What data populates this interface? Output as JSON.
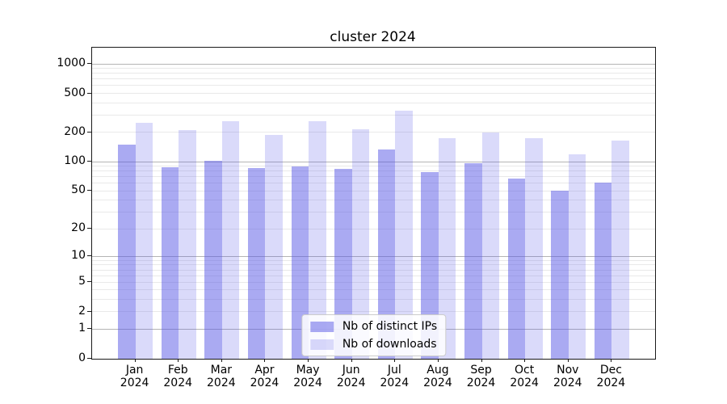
{
  "chart_data": {
    "type": "bar",
    "title": "cluster 2024",
    "categories": [
      "Jan",
      "Feb",
      "Mar",
      "Apr",
      "May",
      "Jun",
      "Jul",
      "Aug",
      "Sep",
      "Oct",
      "Nov",
      "Dec"
    ],
    "xlabel_year": "2024",
    "series": [
      {
        "name": "Nb of distinct IPs",
        "color": "rgba(85,85,230,0.5)",
        "values": [
          150,
          88,
          103,
          86,
          90,
          84,
          134,
          78,
          96,
          67,
          50,
          61
        ]
      },
      {
        "name": "Nb of downloads",
        "color": "rgba(85,85,230,0.22)",
        "values": [
          250,
          210,
          260,
          190,
          260,
          215,
          335,
          175,
          200,
          173,
          120,
          165
        ]
      }
    ],
    "yscale": "log1p",
    "ylim": [
      0,
      1460
    ],
    "yticks": [
      0,
      1,
      2,
      5,
      10,
      20,
      50,
      100,
      200,
      500,
      1000
    ],
    "yticks_major_grid": [
      1,
      10,
      100,
      1000
    ],
    "yticks_minor_grid": [
      2,
      3,
      4,
      5,
      6,
      7,
      8,
      9,
      20,
      30,
      40,
      50,
      60,
      70,
      80,
      90,
      200,
      300,
      400,
      500,
      600,
      700,
      800,
      900
    ],
    "xlabel": "",
    "ylabel": "",
    "grid": true,
    "legend_position": "lower center",
    "colors": {
      "major_grid": "#b4b4b4",
      "minor_grid": "#e9e9e9",
      "spine": "#1a1a1a",
      "background": "#ffffff"
    }
  }
}
